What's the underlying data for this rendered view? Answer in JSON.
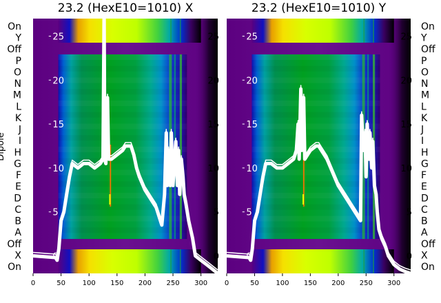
{
  "chart_data": [
    {
      "type": "heatmap",
      "title": "23.2 (HexE10=1010) X",
      "ylabel": "Dipole",
      "dipole_labels": [
        "On",
        "Y",
        "Off",
        "P",
        "O",
        "N",
        "M",
        "L",
        "K",
        "J",
        "I",
        "H",
        "G",
        "F",
        "E",
        "D",
        "C",
        "B",
        "A",
        "Off",
        "X",
        "On"
      ],
      "xlim": [
        0,
        330
      ],
      "xticks": [
        0,
        50,
        100,
        150,
        200,
        250,
        300
      ],
      "trace_ylim": [
        -2,
        27
      ],
      "trace_yticks": [
        0,
        5,
        10,
        15,
        20,
        25
      ],
      "colormap": "nipy_spectral",
      "series": [
        {
          "x": [
            0,
            20,
            40,
            43,
            46,
            50,
            55,
            60,
            65,
            70,
            80,
            90,
            100,
            110,
            120,
            125,
            127,
            128,
            130,
            133,
            135,
            140,
            150,
            160,
            165,
            170,
            175,
            180,
            185,
            190,
            200,
            210,
            220,
            230,
            235,
            238,
            240,
            242,
            245,
            247,
            250,
            253,
            255,
            258,
            260,
            262,
            265,
            268,
            270,
            273,
            278,
            285,
            290,
            300,
            310,
            320,
            330
          ],
          "y": [
            0,
            -0.1,
            -0.2,
            -0.5,
            0.8,
            4,
            5,
            7,
            9,
            10.5,
            10,
            10.5,
            10.5,
            10,
            10.5,
            11,
            28,
            11,
            10.5,
            18,
            11,
            11,
            11.5,
            12,
            12.5,
            12.5,
            12.5,
            11.5,
            10,
            9,
            7.5,
            6.5,
            5.5,
            3.5,
            7,
            14,
            8,
            12,
            8,
            14,
            8,
            11,
            13,
            8,
            12,
            7,
            11,
            9,
            7,
            6,
            4,
            2,
            0,
            -0.5,
            -1,
            -1.5,
            -2
          ]
        }
      ]
    },
    {
      "type": "heatmap",
      "title": "23.2 (HexE10=1010) Y",
      "ylabel": "",
      "dipole_labels": [
        "On",
        "Y",
        "Off",
        "P",
        "O",
        "N",
        "M",
        "L",
        "K",
        "J",
        "I",
        "H",
        "G",
        "F",
        "E",
        "D",
        "C",
        "B",
        "A",
        "Off",
        "X",
        "On"
      ],
      "xlim": [
        0,
        330
      ],
      "xticks": [
        0,
        50,
        100,
        150,
        200,
        250,
        300
      ],
      "trace_ylim": [
        -2,
        27
      ],
      "trace_yticks": [
        0,
        5,
        10,
        15,
        20,
        25
      ],
      "colormap": "nipy_spectral",
      "series": [
        {
          "x": [
            0,
            20,
            40,
            43,
            46,
            50,
            55,
            60,
            65,
            70,
            80,
            90,
            100,
            110,
            120,
            125,
            128,
            130,
            133,
            135,
            138,
            140,
            145,
            150,
            160,
            165,
            170,
            175,
            180,
            190,
            200,
            210,
            220,
            230,
            240,
            242,
            245,
            248,
            250,
            252,
            255,
            257,
            260,
            262,
            265,
            268,
            270,
            273,
            278,
            285,
            290,
            300,
            310,
            320,
            330
          ],
          "y": [
            0,
            -0.1,
            -0.2,
            -0.5,
            0.8,
            4,
            5,
            7,
            9,
            10.5,
            10.5,
            10,
            10,
            10.5,
            11,
            12,
            15,
            11,
            19,
            12,
            18,
            11,
            11.5,
            12,
            12.5,
            12.5,
            12,
            11.5,
            11,
            9.5,
            8,
            7,
            6,
            5,
            4,
            16,
            12,
            14,
            9,
            15,
            11,
            14,
            10,
            13,
            8,
            7,
            5,
            3,
            2,
            1,
            0,
            -1,
            -1.5,
            -1.8,
            -2
          ]
        }
      ]
    }
  ]
}
